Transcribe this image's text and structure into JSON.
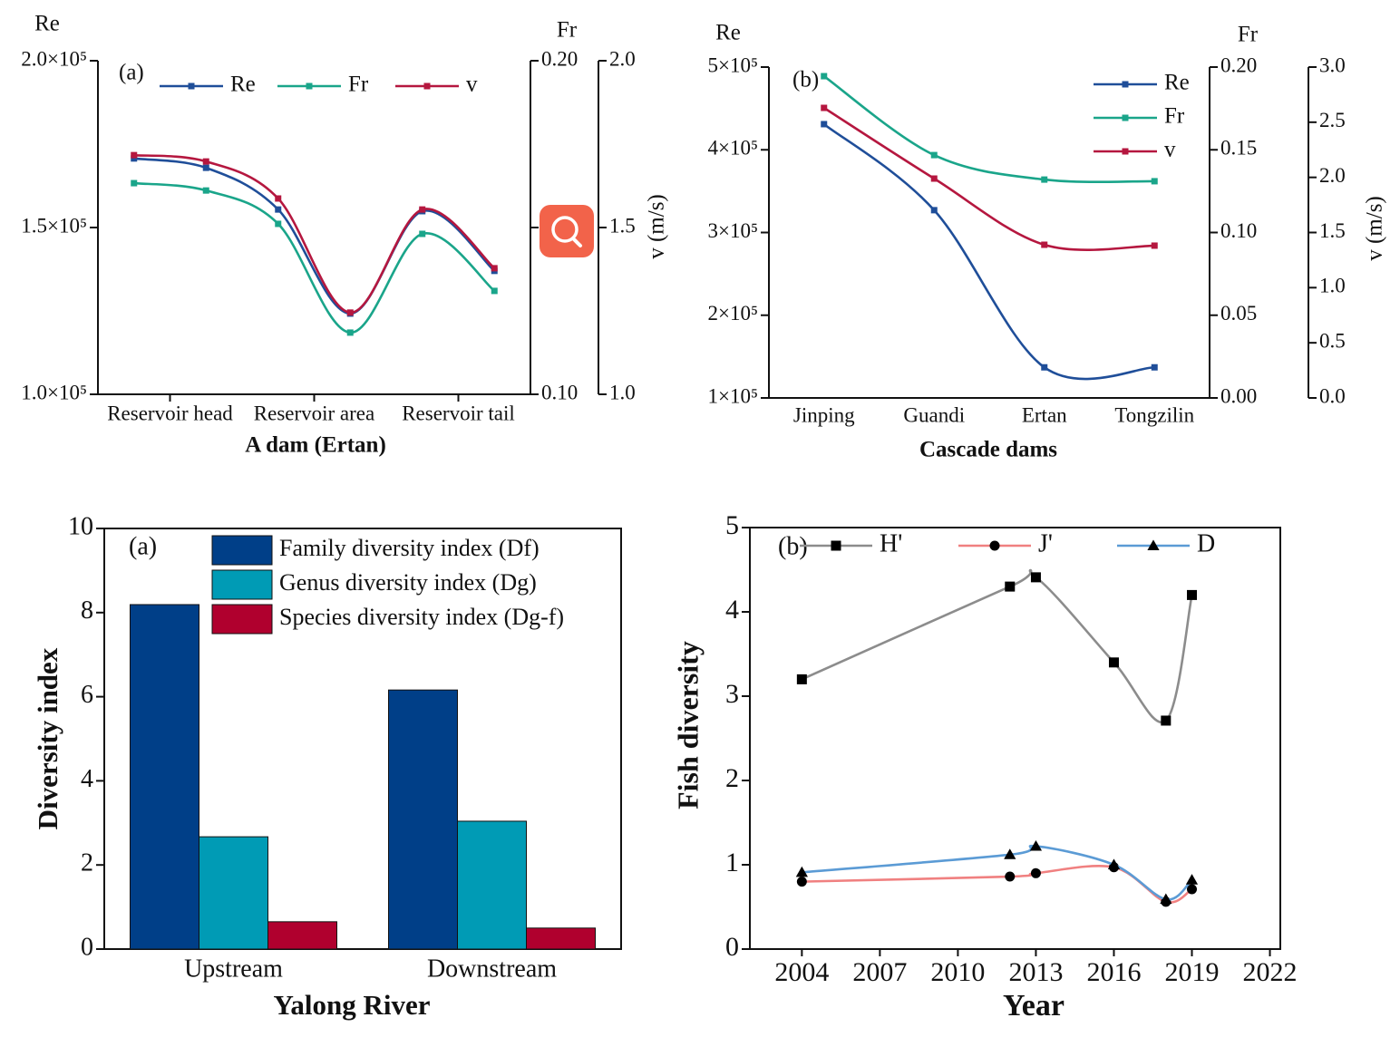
{
  "chart_data": [
    {
      "type": "line",
      "panel_label": "(a)",
      "y_label": "Re",
      "y2_label": "Fr",
      "y3_label": "v (m/s)",
      "x_label": "A dam (Ertan)",
      "x": [
        1,
        2,
        3,
        4,
        5,
        6
      ],
      "xlim": [
        0.5,
        6.5
      ],
      "xticks": [
        {
          "value": 1.5,
          "label": "Reservoir head"
        },
        {
          "value": 3.5,
          "label": "Reservoir area"
        },
        {
          "value": 5.5,
          "label": "Reservoir tail"
        }
      ],
      "ylim": [
        100000,
        200000
      ],
      "yticks": [
        {
          "value": 100000,
          "label": "1.0×10⁵"
        },
        {
          "value": 150000,
          "label": "1.5×10⁵"
        },
        {
          "value": 200000,
          "label": "2.0×10⁵"
        }
      ],
      "y2lim": [
        0.1,
        0.2
      ],
      "y2ticks": [
        {
          "value": 0.1,
          "label": "0.10"
        },
        0.15,
        {
          "value": 0.2,
          "label": "0.20"
        }
      ],
      "y3lim": [
        1,
        2
      ],
      "y3ticks": [
        {
          "value": 1,
          "label": "1.0"
        },
        1.5,
        {
          "value": 2,
          "label": "2.0"
        }
      ],
      "legend": "top",
      "series": [
        {
          "name": "Re",
          "color": "#1f4e99",
          "marker": "square",
          "axis": "y",
          "values": [
            170700,
            167900,
            155400,
            124200,
            154900,
            137000
          ]
        },
        {
          "name": "Fr",
          "color": "#1aa58a",
          "marker": "square",
          "axis": "y2",
          "values": [
            0.1633,
            0.1611,
            0.1511,
            0.1185,
            0.1481,
            0.131
          ]
        },
        {
          "name": "v",
          "color": "#b5173f",
          "marker": "square",
          "axis": "y3",
          "values": [
            1.717,
            1.698,
            1.587,
            1.245,
            1.554,
            1.378
          ]
        }
      ]
    },
    {
      "type": "line",
      "panel_label": "(b)",
      "y_label": "Re",
      "y2_label": "Fr",
      "y3_label": "v (m/s)",
      "x_label": "Cascade dams",
      "categories": [
        "Jinping",
        "Guandi",
        "Ertan",
        "Tongzilin"
      ],
      "ylim": [
        100000,
        500000
      ],
      "yticks": [
        {
          "value": 100000,
          "label": "1×10⁵"
        },
        {
          "value": 200000,
          "label": "2×10⁵"
        },
        {
          "value": 300000,
          "label": "3×10⁵"
        },
        {
          "value": 400000,
          "label": "4×10⁵"
        },
        {
          "value": 500000,
          "label": "5×10⁵"
        }
      ],
      "y2lim": [
        0,
        0.2
      ],
      "y2ticks": [
        {
          "value": 0,
          "label": "0.00"
        },
        0.05,
        {
          "value": 0.1,
          "label": "0.10"
        },
        0.15,
        {
          "value": 0.2,
          "label": "0.20"
        }
      ],
      "y3lim": [
        0,
        3
      ],
      "y3ticks": [
        {
          "value": 0,
          "label": "0.0"
        },
        0.5,
        {
          "value": 1,
          "label": "1.0"
        },
        1.5,
        {
          "value": 2,
          "label": "2.0"
        },
        2.5,
        {
          "value": 3,
          "label": "3.0"
        }
      ],
      "legend": "top-right",
      "series": [
        {
          "name": "Re",
          "color": "#1f4e99",
          "marker": "square",
          "axis": "y",
          "values": [
            431000,
            327000,
            137000,
            137000
          ]
        },
        {
          "name": "Fr",
          "color": "#1aa58a",
          "marker": "square",
          "axis": "y2",
          "values": [
            0.1945,
            0.1468,
            0.132,
            0.131
          ]
        },
        {
          "name": "v",
          "color": "#b5173f",
          "marker": "square",
          "axis": "y3",
          "values": [
            2.63,
            1.989,
            1.389,
            1.381
          ]
        }
      ]
    },
    {
      "type": "bar",
      "panel_label": "(a)",
      "y_label": "Diversity index",
      "x_label": "Yalong River",
      "categories": [
        "Upstream",
        "Downstream"
      ],
      "ylim": [
        0,
        10
      ],
      "yticks": [
        0,
        2,
        4,
        6,
        8,
        10
      ],
      "legend": "top-right",
      "series": [
        {
          "name": "Family diversity index (Df)",
          "color": "#003f88",
          "values": [
            8.19,
            6.16
          ]
        },
        {
          "name": "Genus diversity index (Dg)",
          "color": "#009bb5",
          "values": [
            2.67,
            3.04
          ]
        },
        {
          "name": "Species diversity index (Dg-f)",
          "color": "#b0002e",
          "values": [
            0.65,
            0.5
          ]
        }
      ]
    },
    {
      "type": "line",
      "panel_label": "(b)",
      "y_label": "Fish diversity",
      "x_label": "Year",
      "x": [
        2004,
        2012,
        2013,
        2016,
        2018,
        2019
      ],
      "xlim": [
        2002,
        2022.4
      ],
      "xticks": [
        2004,
        2007,
        2010,
        2013,
        2016,
        2019,
        2022
      ],
      "ylim": [
        0,
        5
      ],
      "yticks": [
        0,
        1,
        2,
        3,
        4,
        5
      ],
      "legend": "top",
      "series": [
        {
          "name": "H'",
          "color": "#8c8c8c",
          "marker": "square",
          "marker_color": "#000000",
          "values": [
            3.2,
            4.3,
            4.41,
            3.4,
            2.71,
            4.2
          ]
        },
        {
          "name": "J'",
          "color": "#f08080",
          "marker": "circle",
          "marker_color": "#000000",
          "values": [
            0.8,
            0.86,
            0.9,
            0.97,
            0.56,
            0.71
          ]
        },
        {
          "name": "D",
          "color": "#5b9bd5",
          "marker": "triangle",
          "marker_color": "#000000",
          "values": [
            0.91,
            1.12,
            1.22,
            1.0,
            0.59,
            0.82
          ]
        }
      ]
    }
  ]
}
